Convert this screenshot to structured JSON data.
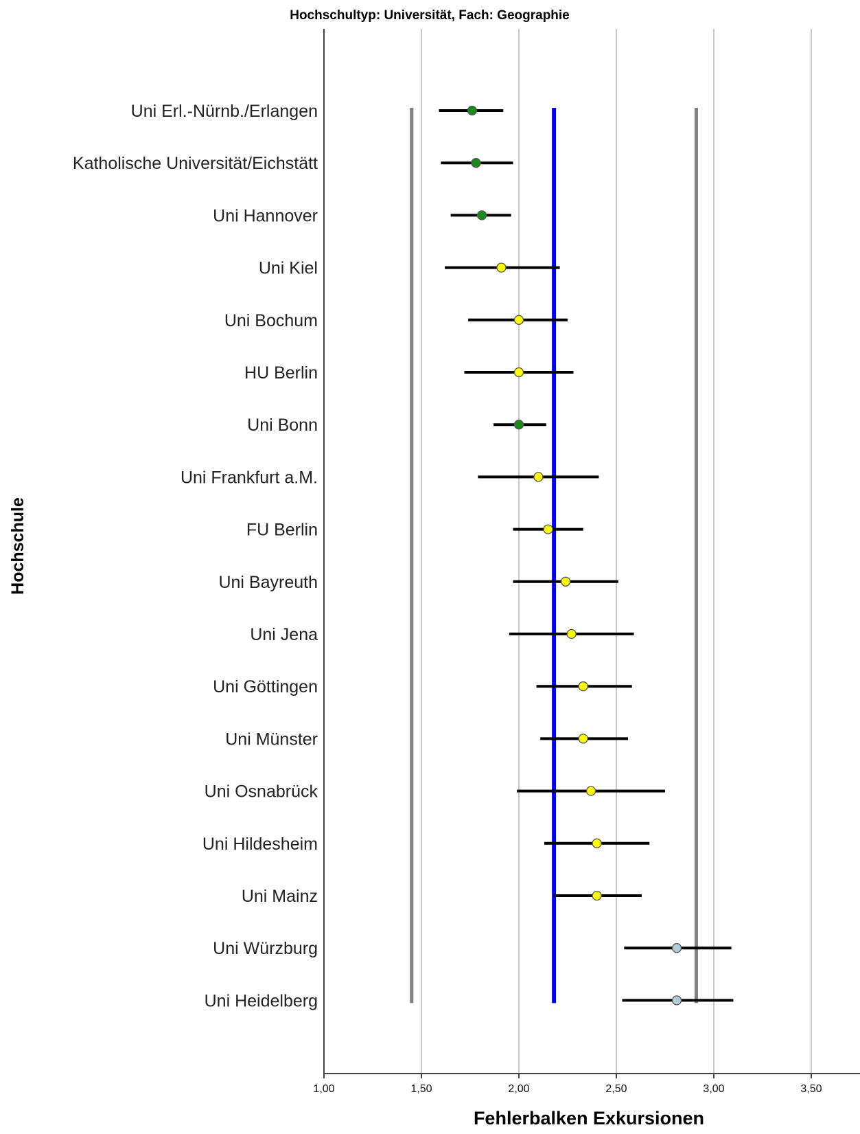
{
  "chart_data": {
    "type": "errorbar",
    "title": "Hochschultyp: Universität, Fach: Geographie",
    "xlabel": "Fehlerbalken Exkursionen",
    "ylabel": "Hochschule",
    "xlim": [
      1.0,
      3.75
    ],
    "xticks": [
      1.0,
      1.5,
      2.0,
      2.5,
      3.0,
      3.5
    ],
    "xtick_labels": [
      "1,00",
      "1,50",
      "2,00",
      "2,50",
      "3,00",
      "3,50"
    ],
    "grid": "vertical",
    "reference_lines": [
      {
        "kind": "mean",
        "value": 2.18,
        "color": "#0000ff"
      },
      {
        "kind": "lower-bound",
        "value": 1.45,
        "color": "#808080"
      },
      {
        "kind": "upper-bound",
        "value": 2.91,
        "color": "#808080"
      }
    ],
    "colors": {
      "green": "#1a8a1a",
      "yellow": "#ffff00",
      "lightblue": "#b0ccd8"
    },
    "categories": [
      "Uni Erl.-Nürnb./Erlangen",
      "Katholische Universität/Eichstätt",
      "Uni Hannover",
      "Uni Kiel",
      "Uni Bochum",
      "HU Berlin",
      "Uni Bonn",
      "Uni Frankfurt a.M.",
      "FU Berlin",
      "Uni Bayreuth",
      "Uni Jena",
      "Uni Göttingen",
      "Uni Münster",
      "Uni Osnabrück",
      "Uni Hildesheim",
      "Uni Mainz",
      "Uni Würzburg",
      "Uni Heidelberg"
    ],
    "points": [
      {
        "mean": 1.76,
        "low": 1.59,
        "high": 1.92,
        "color": "green"
      },
      {
        "mean": 1.78,
        "low": 1.6,
        "high": 1.97,
        "color": "green"
      },
      {
        "mean": 1.81,
        "low": 1.65,
        "high": 1.96,
        "color": "green"
      },
      {
        "mean": 1.91,
        "low": 1.62,
        "high": 2.21,
        "color": "yellow"
      },
      {
        "mean": 2.0,
        "low": 1.74,
        "high": 2.25,
        "color": "yellow"
      },
      {
        "mean": 2.0,
        "low": 1.72,
        "high": 2.28,
        "color": "yellow"
      },
      {
        "mean": 2.0,
        "low": 1.87,
        "high": 2.14,
        "color": "green"
      },
      {
        "mean": 2.1,
        "low": 1.79,
        "high": 2.41,
        "color": "yellow"
      },
      {
        "mean": 2.15,
        "low": 1.97,
        "high": 2.33,
        "color": "yellow"
      },
      {
        "mean": 2.24,
        "low": 1.97,
        "high": 2.51,
        "color": "yellow"
      },
      {
        "mean": 2.27,
        "low": 1.95,
        "high": 2.59,
        "color": "yellow"
      },
      {
        "mean": 2.33,
        "low": 2.09,
        "high": 2.58,
        "color": "yellow"
      },
      {
        "mean": 2.33,
        "low": 2.11,
        "high": 2.56,
        "color": "yellow"
      },
      {
        "mean": 2.37,
        "low": 1.99,
        "high": 2.75,
        "color": "yellow"
      },
      {
        "mean": 2.4,
        "low": 2.13,
        "high": 2.67,
        "color": "yellow"
      },
      {
        "mean": 2.4,
        "low": 2.18,
        "high": 2.63,
        "color": "yellow"
      },
      {
        "mean": 2.81,
        "low": 2.54,
        "high": 3.09,
        "color": "lightblue"
      },
      {
        "mean": 2.81,
        "low": 2.53,
        "high": 3.1,
        "color": "lightblue"
      }
    ]
  }
}
